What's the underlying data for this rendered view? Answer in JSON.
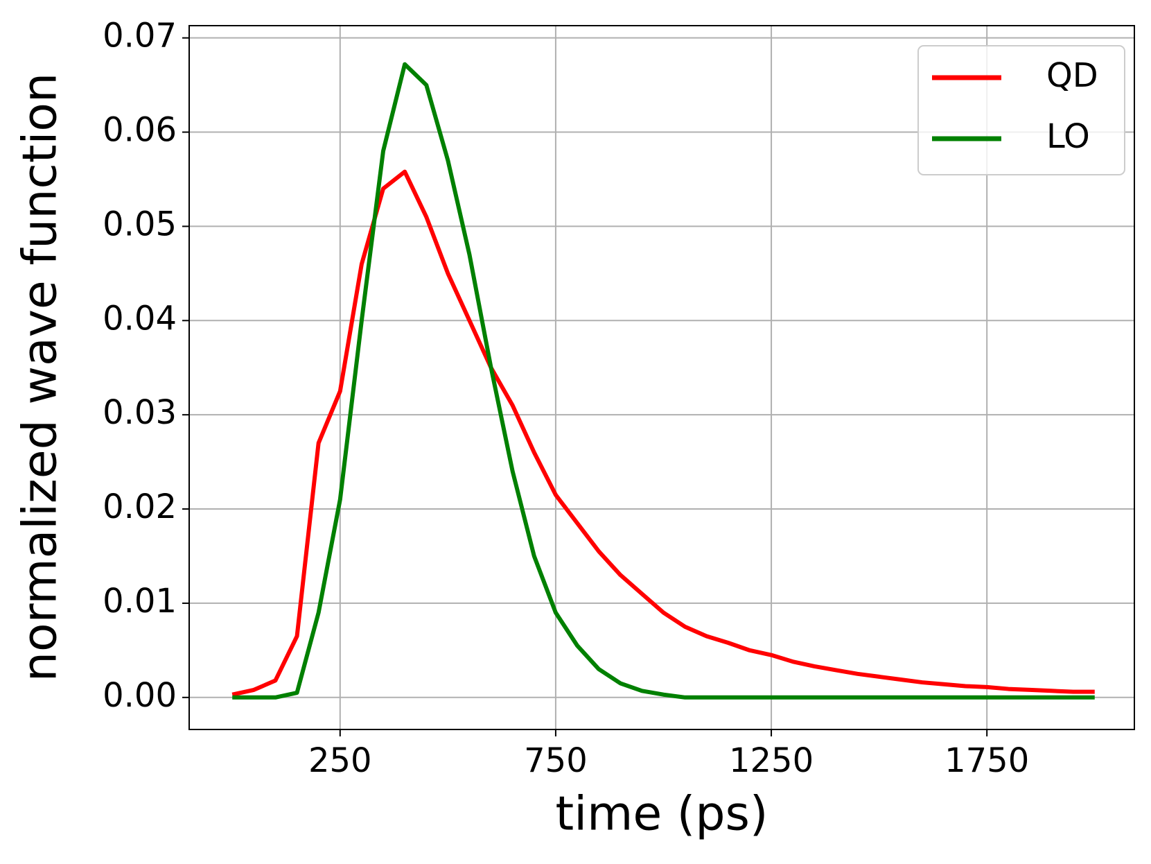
{
  "chart_data": {
    "type": "line",
    "xlabel": "time (ps)",
    "ylabel": "normalized wave function",
    "x": [
      0,
      50,
      100,
      150,
      200,
      250,
      300,
      350,
      400,
      450,
      500,
      550,
      600,
      650,
      700,
      750,
      800,
      850,
      900,
      950,
      1000,
      1050,
      1100,
      1150,
      1200,
      1250,
      1300,
      1350,
      1400,
      1450,
      1500,
      1550,
      1600,
      1650,
      1700,
      1750,
      1800,
      1850,
      1900,
      1950,
      2000
    ],
    "series": [
      {
        "name": "QD",
        "color": "#ff0000",
        "values": [
          0.0003,
          0.0008,
          0.0018,
          0.0065,
          0.027,
          0.0325,
          0.046,
          0.054,
          0.0558,
          0.051,
          0.045,
          0.04,
          0.035,
          0.031,
          0.026,
          0.0215,
          0.0185,
          0.0155,
          0.013,
          0.011,
          0.009,
          0.0075,
          0.0065,
          0.0058,
          0.005,
          0.0045,
          0.0038,
          0.0033,
          0.0029,
          0.0025,
          0.0022,
          0.0019,
          0.0016,
          0.0014,
          0.0012,
          0.0011,
          0.0009,
          0.0008,
          0.0007,
          0.0006,
          0.0006
        ]
      },
      {
        "name": "LO",
        "color": "#008000",
        "values": [
          0,
          0,
          0,
          0.0005,
          0.009,
          0.021,
          0.04,
          0.058,
          0.0672,
          0.065,
          0.057,
          0.047,
          0.035,
          0.024,
          0.015,
          0.009,
          0.0055,
          0.003,
          0.0015,
          0.0007,
          0.0003,
          0,
          0,
          0,
          0,
          0,
          0,
          0,
          0,
          0,
          0,
          0,
          0,
          0,
          0,
          0,
          0,
          0,
          0,
          0,
          0
        ]
      }
    ],
    "xlim": [
      -100,
      2092
    ],
    "xticks": [
      250,
      750,
      1250,
      1750
    ],
    "ylim": [
      -0.0034,
      0.0713
    ],
    "yticks": [
      {
        "value": 0,
        "label": "0.00"
      },
      0.01,
      0.02,
      0.03,
      0.04,
      0.05,
      0.06,
      0.07
    ],
    "grid": true,
    "legend": "upper right"
  }
}
